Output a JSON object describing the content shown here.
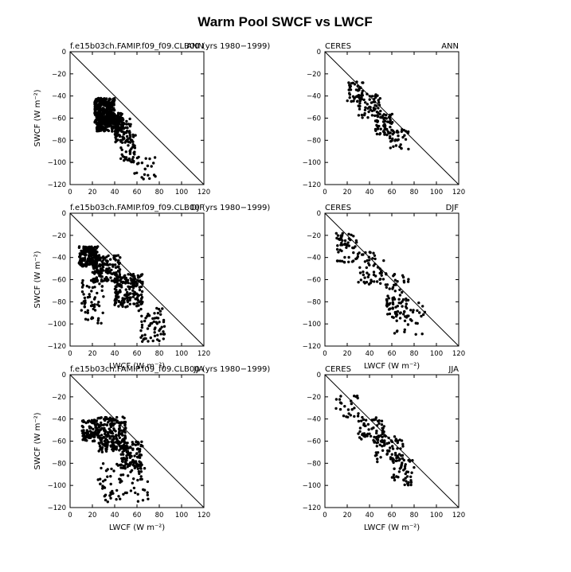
{
  "figure": {
    "title": "Warm Pool SWCF vs LWCF"
  },
  "chart_data": [
    {
      "type": "scatter",
      "left_label": "f.e15b03ch.FAMIP.f09_f09.CLB00 (yrs 1980−1999)",
      "right_label": "ANN",
      "ylabel": "SWCF",
      "ylabel_unit": "(W m⁻²)",
      "xlabel": "",
      "xlabel_unit": "",
      "xlim": [
        0,
        120
      ],
      "ylim": [
        -120,
        0
      ],
      "xticks": [
        0,
        20,
        40,
        60,
        80,
        100,
        120
      ],
      "yticks": [
        0,
        -20,
        -40,
        -60,
        -80,
        -100,
        -120
      ],
      "reference_line": "y = -x",
      "dots": {
        "marker_color": "#000000",
        "blocks": [
          {
            "x": [
              22,
              40
            ],
            "y": [
              -66,
              -42
            ],
            "n": 350
          },
          {
            "x": [
              24,
              48
            ],
            "y": [
              -72,
              -55
            ],
            "n": 200
          },
          {
            "x": [
              40,
              55
            ],
            "y": [
              -82,
              -60
            ],
            "n": 70
          },
          {
            "x": [
              45,
              62
            ],
            "y": [
              -100,
              -75
            ],
            "n": 45
          },
          {
            "x": [
              55,
              78
            ],
            "y": [
              -115,
              -95
            ],
            "n": 22
          }
        ]
      }
    },
    {
      "type": "scatter",
      "left_label": "CERES",
      "right_label": "ANN",
      "ylabel": "",
      "ylabel_unit": "",
      "xlabel": "",
      "xlabel_unit": "",
      "xlim": [
        0,
        120
      ],
      "ylim": [
        -120,
        0
      ],
      "xticks": [
        0,
        20,
        40,
        60,
        80,
        100,
        120
      ],
      "yticks": [
        0,
        -20,
        -40,
        -60,
        -80,
        -100,
        -120
      ],
      "reference_line": "y = -x",
      "dots": {
        "marker_color": "#000000",
        "blocks": [
          {
            "x": [
              20,
              35
            ],
            "y": [
              -45,
              -27
            ],
            "n": 45
          },
          {
            "x": [
              30,
              50
            ],
            "y": [
              -60,
              -38
            ],
            "n": 60
          },
          {
            "x": [
              45,
              62
            ],
            "y": [
              -75,
              -55
            ],
            "n": 55
          },
          {
            "x": [
              55,
              75
            ],
            "y": [
              -88,
              -68
            ],
            "n": 40
          }
        ]
      }
    },
    {
      "type": "scatter",
      "left_label": "f.e15b03ch.FAMIP.f09_f09.CLB00 (yrs 1980−1999)",
      "right_label": "DJF",
      "ylabel": "SWCF",
      "ylabel_unit": "(W m⁻²)",
      "xlabel": "LWCF",
      "xlabel_unit": "(W m⁻²)",
      "xlim": [
        0,
        120
      ],
      "ylim": [
        -120,
        0
      ],
      "xticks": [
        0,
        20,
        40,
        60,
        80,
        100,
        120
      ],
      "yticks": [
        0,
        -20,
        -40,
        -60,
        -80,
        -100,
        -120
      ],
      "reference_line": "y = -x",
      "dots": {
        "marker_color": "#000000",
        "blocks": [
          {
            "x": [
              8,
              25
            ],
            "y": [
              -48,
              -30
            ],
            "n": 180
          },
          {
            "x": [
              20,
              45
            ],
            "y": [
              -62,
              -38
            ],
            "n": 160
          },
          {
            "x": [
              40,
              65
            ],
            "y": [
              -85,
              -55
            ],
            "n": 180
          },
          {
            "x": [
              10,
              30
            ],
            "y": [
              -100,
              -60
            ],
            "n": 60
          },
          {
            "x": [
              60,
              85
            ],
            "y": [
              -118,
              -85
            ],
            "n": 60
          }
        ]
      }
    },
    {
      "type": "scatter",
      "left_label": "CERES",
      "right_label": "DJF",
      "ylabel": "",
      "ylabel_unit": "",
      "xlabel": "LWCF",
      "xlabel_unit": "(W m⁻²)",
      "xlim": [
        0,
        120
      ],
      "ylim": [
        -120,
        0
      ],
      "xticks": [
        0,
        20,
        40,
        60,
        80,
        100,
        120
      ],
      "yticks": [
        0,
        -20,
        -40,
        -60,
        -80,
        -100,
        -120
      ],
      "reference_line": "y = -x",
      "dots": {
        "marker_color": "#000000",
        "blocks": [
          {
            "x": [
              10,
              30
            ],
            "y": [
              -45,
              -18
            ],
            "n": 55
          },
          {
            "x": [
              30,
              55
            ],
            "y": [
              -65,
              -35
            ],
            "n": 55
          },
          {
            "x": [
              55,
              75
            ],
            "y": [
              -95,
              -55
            ],
            "n": 70
          },
          {
            "x": [
              60,
              90
            ],
            "y": [
              -110,
              -80
            ],
            "n": 30
          }
        ]
      }
    },
    {
      "type": "scatter",
      "left_label": "f.e15b03ch.FAMIP.f09_f09.CLB00 (yrs 1980−1999)",
      "right_label": "JJA",
      "ylabel": "SWCF",
      "ylabel_unit": "(W m⁻²)",
      "xlabel": "LWCF",
      "xlabel_unit": "(W m⁻²)",
      "xlim": [
        0,
        120
      ],
      "ylim": [
        -120,
        0
      ],
      "xticks": [
        0,
        20,
        40,
        60,
        80,
        100,
        120
      ],
      "yticks": [
        0,
        -20,
        -40,
        -60,
        -80,
        -100,
        -120
      ],
      "reference_line": "y = -x",
      "dots": {
        "marker_color": "#000000",
        "blocks": [
          {
            "x": [
              10,
              25
            ],
            "y": [
              -60,
              -40
            ],
            "n": 90
          },
          {
            "x": [
              25,
              50
            ],
            "y": [
              -70,
              -38
            ],
            "n": 230
          },
          {
            "x": [
              45,
              65
            ],
            "y": [
              -85,
              -60
            ],
            "n": 120
          },
          {
            "x": [
              25,
              70
            ],
            "y": [
              -115,
              -80
            ],
            "n": 80
          }
        ]
      }
    },
    {
      "type": "scatter",
      "left_label": "CERES",
      "right_label": "JJA",
      "ylabel": "",
      "ylabel_unit": "",
      "xlabel": "LWCF",
      "xlabel_unit": "(W m⁻²)",
      "xlim": [
        0,
        120
      ],
      "ylim": [
        -120,
        0
      ],
      "xticks": [
        0,
        20,
        40,
        60,
        80,
        100,
        120
      ],
      "yticks": [
        0,
        -20,
        -40,
        -60,
        -80,
        -100,
        -120
      ],
      "reference_line": "y = -x",
      "dots": {
        "marker_color": "#000000",
        "blocks": [
          {
            "x": [
              10,
              30
            ],
            "y": [
              -40,
              -18
            ],
            "n": 25
          },
          {
            "x": [
              30,
              55
            ],
            "y": [
              -62,
              -38
            ],
            "n": 60
          },
          {
            "x": [
              45,
              70
            ],
            "y": [
              -80,
              -55
            ],
            "n": 70
          },
          {
            "x": [
              60,
              80
            ],
            "y": [
              -100,
              -75
            ],
            "n": 45
          }
        ]
      }
    }
  ]
}
